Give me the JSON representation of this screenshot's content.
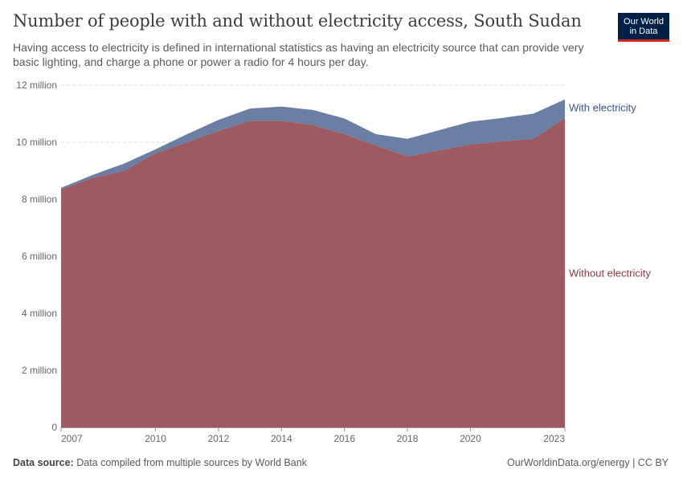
{
  "header": {
    "title": "Number of people with and without electricity access, South Sudan",
    "subtitle": "Having access to electricity is defined in international statistics as having an electricity source that can provide very basic lighting, and charge a phone or power a radio for 4 hours per day."
  },
  "logo": {
    "text": "Our World\nin Data",
    "bg_color": "#002147",
    "accent_color": "#ce261e"
  },
  "footer": {
    "source_label": "Data source:",
    "source_text": "Data compiled from multiple sources by World Bank",
    "credit": "OurWorldinData.org/energy | CC BY"
  },
  "chart_data": {
    "type": "area",
    "stacked": true,
    "x": [
      2007,
      2008,
      2009,
      2010,
      2011,
      2012,
      2013,
      2014,
      2015,
      2016,
      2017,
      2018,
      2019,
      2020,
      2021,
      2022,
      2023
    ],
    "series": [
      {
        "name": "Without electricity",
        "color": "#9e5a61",
        "label_color": "#8b3a44",
        "values": [
          8.35,
          8.75,
          9.0,
          9.62,
          10.0,
          10.4,
          10.75,
          10.75,
          10.6,
          10.28,
          9.88,
          9.5,
          9.72,
          9.92,
          10.03,
          10.12,
          10.85
        ]
      },
      {
        "name": "With electricity",
        "color": "#6a7fa3",
        "label_color": "#3a5688",
        "values": [
          0.05,
          0.1,
          0.25,
          0.13,
          0.28,
          0.38,
          0.43,
          0.5,
          0.53,
          0.55,
          0.4,
          0.62,
          0.7,
          0.8,
          0.82,
          0.88,
          0.65
        ]
      }
    ],
    "xticks": [
      2007,
      2010,
      2012,
      2014,
      2016,
      2018,
      2020,
      2023
    ],
    "yticks": [
      0,
      2,
      4,
      6,
      8,
      10,
      12
    ],
    "ytick_labels": [
      "0",
      "2 million",
      "4 million",
      "6 million",
      "8 million",
      "10 million",
      "12 million"
    ],
    "ylim": [
      0,
      12
    ],
    "xlim": [
      2007,
      2023
    ],
    "grid": "horizontal-dashed",
    "legend": "right-inline"
  }
}
